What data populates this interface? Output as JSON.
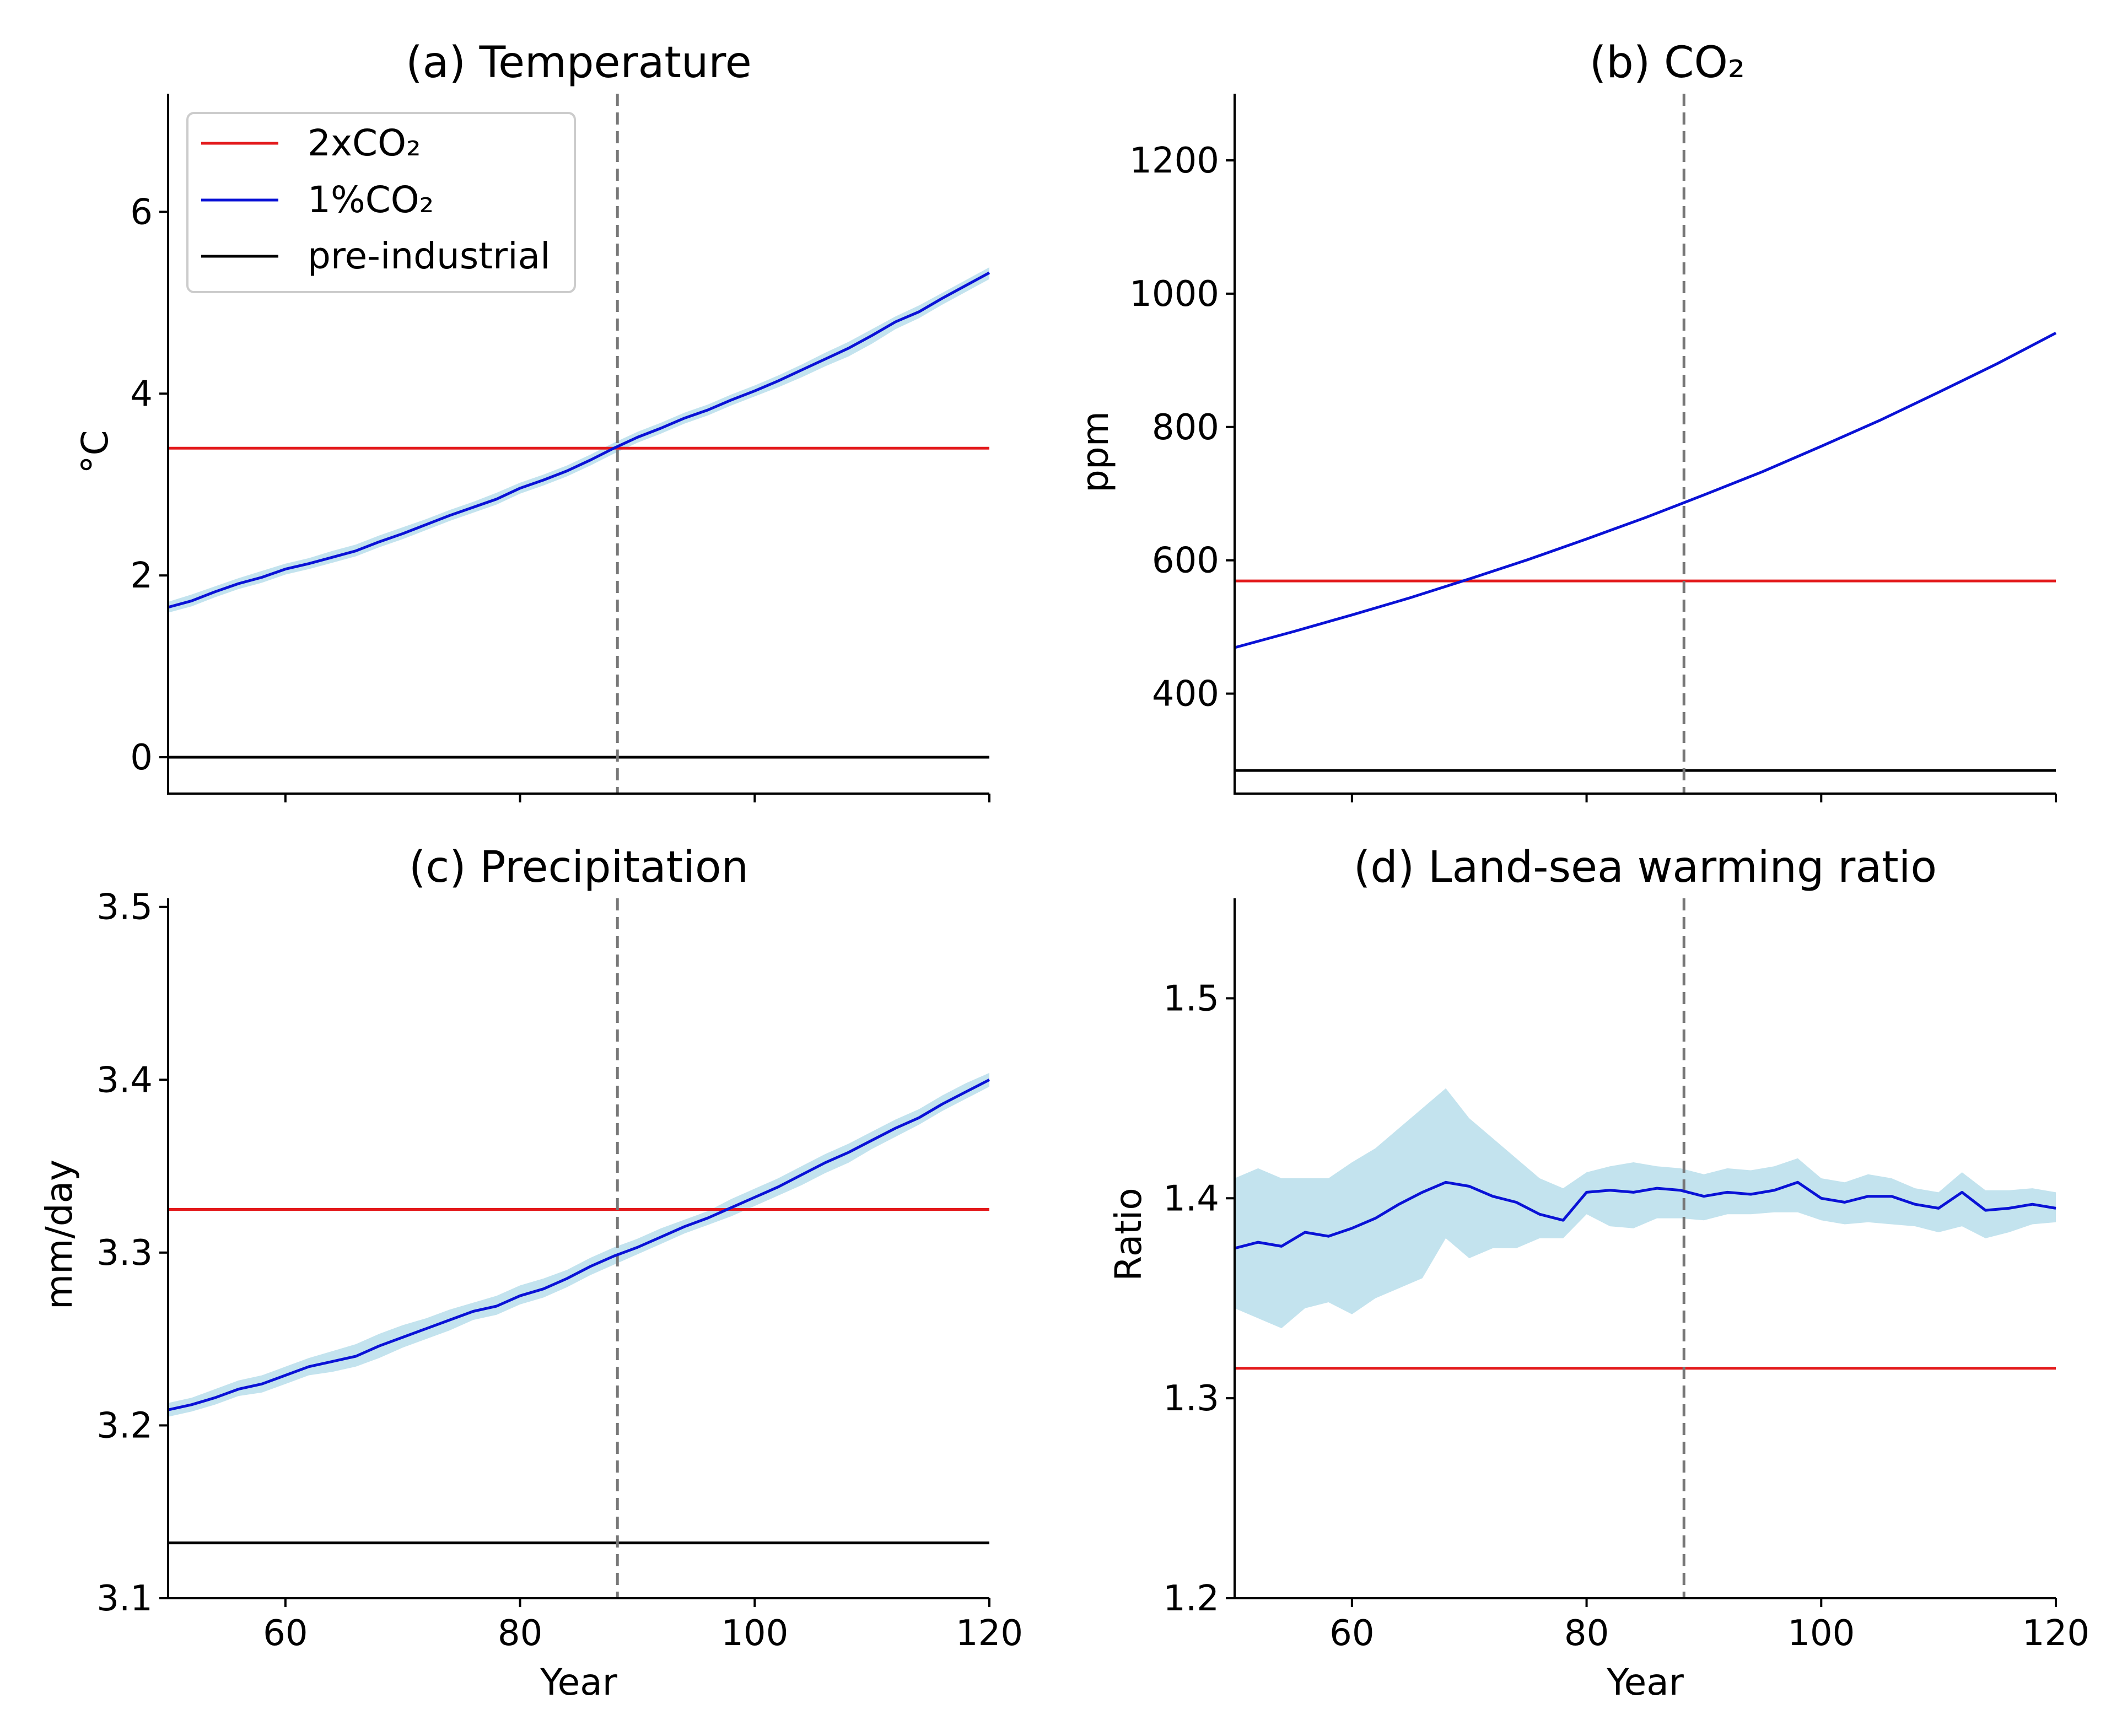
{
  "chart_data": [
    {
      "panel": "a",
      "type": "line",
      "title": "(a) Temperature",
      "xlabel": "",
      "ylabel": "°C",
      "xlim": [
        50,
        120
      ],
      "ylim": [
        -0.4,
        7.3
      ],
      "xticks": [
        60,
        80,
        100,
        120
      ],
      "xtick_labels_shown": false,
      "yticks": [
        0,
        2,
        4,
        6
      ],
      "grid": false,
      "legend": {
        "placement": "upper-left",
        "entries": [
          {
            "label": "2xCO₂",
            "color": "#e31a1c"
          },
          {
            "label": "1%CO₂",
            "color": "#0a12d6"
          },
          {
            "label": "pre-industrial",
            "color": "#000000"
          }
        ]
      },
      "reference_lines": [
        {
          "label": "2xCO₂",
          "y": 3.4,
          "color": "#e31a1c"
        },
        {
          "label": "pre-industrial",
          "y": 0.0,
          "color": "#000000"
        }
      ],
      "vline": {
        "x": 88.3,
        "color": "#777777",
        "style": "dashed"
      },
      "series": [
        {
          "name": "1%CO₂",
          "color": "#0a12d6",
          "x": [
            50,
            52,
            54,
            56,
            58,
            60,
            62,
            64,
            66,
            68,
            70,
            72,
            74,
            76,
            78,
            80,
            82,
            84,
            86,
            88,
            90,
            92,
            94,
            96,
            98,
            100,
            102,
            104,
            106,
            108,
            110,
            112,
            114,
            116,
            118,
            120
          ],
          "y": [
            1.65,
            1.72,
            1.82,
            1.91,
            1.98,
            2.07,
            2.13,
            2.2,
            2.27,
            2.37,
            2.46,
            2.56,
            2.66,
            2.75,
            2.84,
            2.96,
            3.05,
            3.15,
            3.27,
            3.4,
            3.52,
            3.62,
            3.73,
            3.82,
            3.93,
            4.03,
            4.14,
            4.26,
            4.38,
            4.5,
            4.64,
            4.79,
            4.9,
            5.05,
            5.19,
            5.33
          ],
          "band_low": [
            1.59,
            1.66,
            1.76,
            1.85,
            1.92,
            2.01,
            2.07,
            2.14,
            2.21,
            2.31,
            2.4,
            2.5,
            2.6,
            2.69,
            2.78,
            2.9,
            2.99,
            3.09,
            3.21,
            3.34,
            3.46,
            3.56,
            3.67,
            3.76,
            3.87,
            3.97,
            4.07,
            4.18,
            4.3,
            4.41,
            4.55,
            4.71,
            4.83,
            4.98,
            5.12,
            5.26
          ],
          "band_high": [
            1.71,
            1.79,
            1.88,
            1.97,
            2.05,
            2.13,
            2.19,
            2.27,
            2.34,
            2.44,
            2.53,
            2.62,
            2.72,
            2.81,
            2.91,
            3.02,
            3.11,
            3.21,
            3.33,
            3.46,
            3.58,
            3.68,
            3.79,
            3.88,
            3.99,
            4.09,
            4.2,
            4.32,
            4.45,
            4.57,
            4.71,
            4.85,
            4.97,
            5.11,
            5.25,
            5.39
          ]
        }
      ]
    },
    {
      "panel": "b",
      "type": "line",
      "title": "(b) CO₂",
      "xlabel": "",
      "ylabel": "ppm",
      "xlim": [
        50,
        120
      ],
      "ylim": [
        250,
        1300
      ],
      "xticks": [
        60,
        80,
        100,
        120
      ],
      "xtick_labels_shown": false,
      "yticks": [
        400,
        600,
        800,
        1000,
        1200
      ],
      "grid": false,
      "reference_lines": [
        {
          "label": "2xCO₂",
          "y": 569,
          "color": "#e31a1c"
        },
        {
          "label": "pre-industrial",
          "y": 284.7,
          "color": "#000000"
        }
      ],
      "vline": {
        "x": 88.3,
        "color": "#777777",
        "style": "dashed"
      },
      "series": [
        {
          "name": "1%CO₂",
          "color": "#0a12d6",
          "x": [
            50,
            55,
            60,
            65,
            70,
            75,
            80,
            85,
            90,
            95,
            100,
            105,
            110,
            115,
            120
          ],
          "y": [
            469,
            493,
            518,
            544,
            572,
            601,
            632,
            664,
            698,
            733,
            771,
            810,
            852,
            895,
            941
          ]
        }
      ]
    },
    {
      "panel": "c",
      "type": "line",
      "title": "(c) Precipitation",
      "xlabel": "Year",
      "ylabel": "mm/day",
      "xlim": [
        50,
        120
      ],
      "ylim": [
        3.1,
        3.505
      ],
      "xticks": [
        60,
        80,
        100,
        120
      ],
      "xtick_labels_shown": true,
      "yticks": [
        3.1,
        3.2,
        3.3,
        3.4,
        3.5
      ],
      "grid": false,
      "reference_lines": [
        {
          "label": "2xCO₂",
          "y": 3.325,
          "color": "#e31a1c"
        },
        {
          "label": "pre-industrial",
          "y": 3.132,
          "color": "#000000"
        }
      ],
      "vline": {
        "x": 88.3,
        "color": "#777777",
        "style": "dashed"
      },
      "series": [
        {
          "name": "1%CO₂",
          "color": "#0a12d6",
          "x": [
            50,
            52,
            54,
            56,
            58,
            60,
            62,
            64,
            66,
            68,
            70,
            72,
            74,
            76,
            78,
            80,
            82,
            84,
            86,
            88,
            90,
            92,
            94,
            96,
            98,
            100,
            102,
            104,
            106,
            108,
            110,
            112,
            114,
            116,
            118,
            120
          ],
          "y": [
            3.209,
            3.212,
            3.216,
            3.221,
            3.224,
            3.229,
            3.234,
            3.237,
            3.24,
            3.246,
            3.251,
            3.256,
            3.261,
            3.266,
            3.269,
            3.275,
            3.279,
            3.285,
            3.292,
            3.298,
            3.303,
            3.309,
            3.315,
            3.32,
            3.326,
            3.332,
            3.338,
            3.345,
            3.352,
            3.358,
            3.365,
            3.372,
            3.378,
            3.386,
            3.393,
            3.4
          ],
          "band_low": [
            3.205,
            3.208,
            3.212,
            3.217,
            3.219,
            3.224,
            3.229,
            3.231,
            3.234,
            3.239,
            3.245,
            3.25,
            3.255,
            3.261,
            3.264,
            3.27,
            3.274,
            3.28,
            3.287,
            3.293,
            3.299,
            3.305,
            3.311,
            3.316,
            3.321,
            3.327,
            3.333,
            3.339,
            3.346,
            3.352,
            3.36,
            3.367,
            3.374,
            3.382,
            3.389,
            3.396
          ],
          "band_high": [
            3.213,
            3.216,
            3.221,
            3.226,
            3.229,
            3.234,
            3.239,
            3.243,
            3.247,
            3.253,
            3.258,
            3.262,
            3.267,
            3.271,
            3.275,
            3.281,
            3.285,
            3.29,
            3.297,
            3.303,
            3.308,
            3.314,
            3.319,
            3.324,
            3.331,
            3.337,
            3.343,
            3.35,
            3.357,
            3.363,
            3.37,
            3.377,
            3.383,
            3.391,
            3.398,
            3.404
          ]
        }
      ]
    },
    {
      "panel": "d",
      "type": "line",
      "title": "(d) Land-sea warming ratio",
      "xlabel": "Year",
      "ylabel": "Ratio",
      "xlim": [
        50,
        120
      ],
      "ylim": [
        1.2,
        1.55
      ],
      "xticks": [
        60,
        80,
        100,
        120
      ],
      "xtick_labels_shown": true,
      "yticks": [
        1.2,
        1.3,
        1.4,
        1.5
      ],
      "grid": false,
      "reference_lines": [
        {
          "label": "2xCO₂",
          "y": 1.315,
          "color": "#e31a1c"
        }
      ],
      "vline": {
        "x": 88.3,
        "color": "#777777",
        "style": "dashed"
      },
      "series": [
        {
          "name": "1%CO₂",
          "color": "#0a12d6",
          "x": [
            50,
            52,
            54,
            56,
            58,
            60,
            62,
            64,
            66,
            68,
            70,
            72,
            74,
            76,
            78,
            80,
            82,
            84,
            86,
            88,
            90,
            92,
            94,
            96,
            98,
            100,
            102,
            104,
            106,
            108,
            110,
            112,
            114,
            116,
            118,
            120
          ],
          "y": [
            1.375,
            1.378,
            1.376,
            1.383,
            1.381,
            1.385,
            1.39,
            1.397,
            1.403,
            1.408,
            1.406,
            1.401,
            1.398,
            1.392,
            1.389,
            1.403,
            1.404,
            1.403,
            1.405,
            1.404,
            1.401,
            1.403,
            1.402,
            1.404,
            1.408,
            1.4,
            1.398,
            1.401,
            1.401,
            1.397,
            1.395,
            1.403,
            1.394,
            1.395,
            1.397,
            1.395
          ],
          "band_low": [
            1.345,
            1.34,
            1.335,
            1.345,
            1.348,
            1.342,
            1.35,
            1.355,
            1.36,
            1.38,
            1.37,
            1.375,
            1.375,
            1.38,
            1.38,
            1.392,
            1.386,
            1.385,
            1.39,
            1.39,
            1.389,
            1.392,
            1.392,
            1.393,
            1.393,
            1.389,
            1.387,
            1.388,
            1.387,
            1.386,
            1.383,
            1.386,
            1.38,
            1.383,
            1.387,
            1.388
          ],
          "band_high": [
            1.41,
            1.415,
            1.41,
            1.41,
            1.41,
            1.418,
            1.425,
            1.435,
            1.445,
            1.455,
            1.44,
            1.43,
            1.42,
            1.41,
            1.405,
            1.413,
            1.416,
            1.418,
            1.416,
            1.415,
            1.412,
            1.415,
            1.414,
            1.416,
            1.42,
            1.41,
            1.408,
            1.412,
            1.41,
            1.405,
            1.403,
            1.413,
            1.404,
            1.404,
            1.405,
            1.403
          ]
        }
      ]
    }
  ],
  "colors": {
    "two_x_co2": "#e31a1c",
    "one_percent_co2": "#0a12d6",
    "pre_industrial": "#000000",
    "spread_band": "#c3e3ee",
    "reference_dash": "#777777"
  }
}
